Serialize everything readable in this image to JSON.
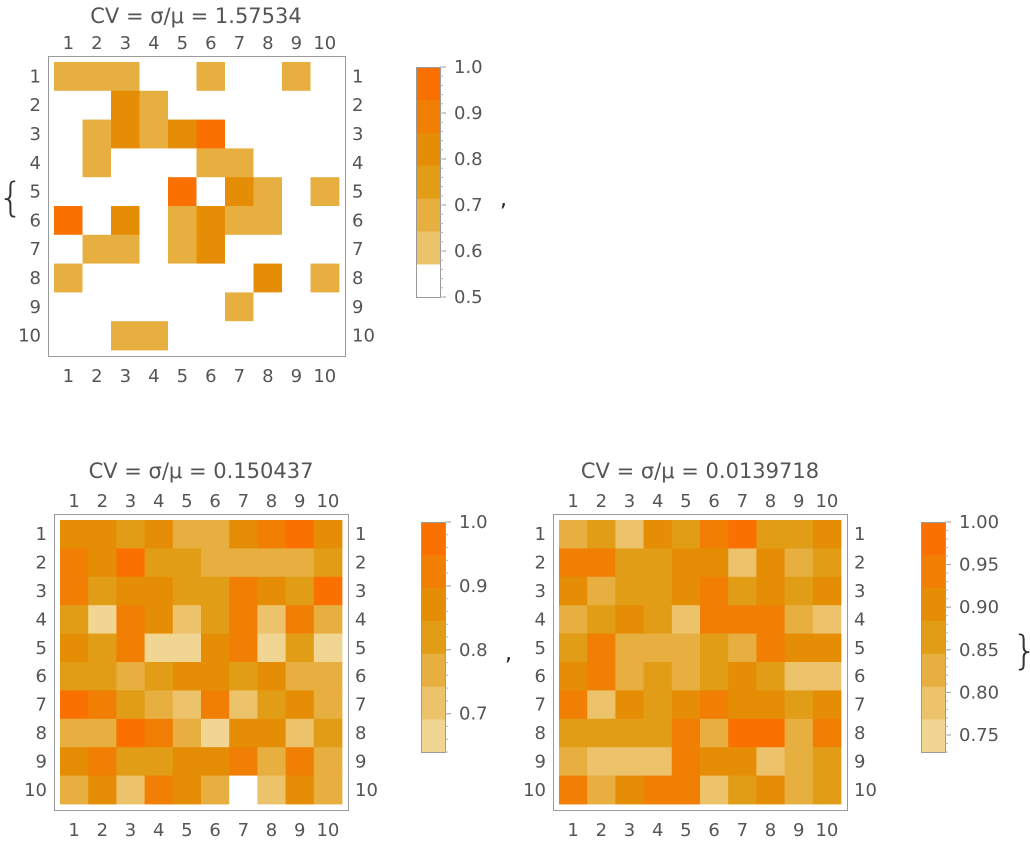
{
  "punctuation": {
    "open_brace": "{",
    "comma1": ",",
    "comma2": ",",
    "close_brace": "}"
  },
  "chart_data": [
    {
      "type": "heatmap",
      "title": "CV = σ/μ = 1.57534",
      "row_labels": [
        "1",
        "2",
        "3",
        "4",
        "5",
        "6",
        "7",
        "8",
        "9",
        "10"
      ],
      "col_labels": [
        "1",
        "2",
        "3",
        "4",
        "5",
        "6",
        "7",
        "8",
        "9",
        "10"
      ],
      "value_range": [
        0.5,
        1.0
      ],
      "colorbar_ticks": [
        "0.5",
        "0.6",
        "0.7",
        "0.8",
        "0.9",
        "1.0"
      ],
      "colorbar_steps": 7,
      "values": [
        [
          0.65,
          0.65,
          0.65,
          0,
          0,
          0.65,
          0,
          0,
          0.65,
          0
        ],
        [
          0,
          0,
          0.85,
          0.65,
          0,
          0,
          0,
          0,
          0,
          0
        ],
        [
          0,
          0.65,
          0.85,
          0.65,
          0.85,
          1.0,
          0,
          0,
          0,
          0
        ],
        [
          0,
          0.65,
          0,
          0,
          0,
          0.65,
          0.65,
          0,
          0,
          0
        ],
        [
          0,
          0,
          0,
          0,
          1.0,
          0,
          0.85,
          0.65,
          0,
          0.65
        ],
        [
          1.0,
          0,
          0.85,
          0,
          0.65,
          0.85,
          0.65,
          0.65,
          0,
          0
        ],
        [
          0,
          0.65,
          0.65,
          0,
          0.65,
          0.85,
          0,
          0,
          0,
          0
        ],
        [
          0.65,
          0,
          0,
          0,
          0,
          0,
          0,
          0.85,
          0,
          0.65
        ],
        [
          0,
          0,
          0,
          0,
          0,
          0,
          0.65,
          0,
          0,
          0
        ],
        [
          0,
          0,
          0.65,
          0.65,
          0,
          0,
          0,
          0,
          0,
          0
        ]
      ]
    },
    {
      "type": "heatmap",
      "title": "CV = σ/μ = 0.150437",
      "row_labels": [
        "1",
        "2",
        "3",
        "4",
        "5",
        "6",
        "7",
        "8",
        "9",
        "10"
      ],
      "col_labels": [
        "1",
        "2",
        "3",
        "4",
        "5",
        "6",
        "7",
        "8",
        "9",
        "10"
      ],
      "value_range": [
        0.64,
        1.0
      ],
      "colorbar_ticks": [
        "0.7",
        "0.8",
        "0.9",
        "1.0"
      ],
      "colorbar_steps": 7,
      "values": [
        [
          0.88,
          0.86,
          0.8,
          0.88,
          0.75,
          0.79,
          0.89,
          0.9,
          0.95,
          0.85
        ],
        [
          0.9,
          0.85,
          0.97,
          0.82,
          0.84,
          0.79,
          0.75,
          0.77,
          0.75,
          0.8
        ],
        [
          0.9,
          0.8,
          0.86,
          0.88,
          0.82,
          0.82,
          0.91,
          0.89,
          0.84,
          0.99
        ],
        [
          0.82,
          0.66,
          0.93,
          0.86,
          0.73,
          0.83,
          0.92,
          0.74,
          0.9,
          0.78
        ],
        [
          0.85,
          0.81,
          0.91,
          0.67,
          0.66,
          0.89,
          0.9,
          0.69,
          0.8,
          0.66
        ],
        [
          0.83,
          0.81,
          0.77,
          0.81,
          0.89,
          0.86,
          0.82,
          0.89,
          0.75,
          0.77
        ],
        [
          0.96,
          0.92,
          0.84,
          0.77,
          0.73,
          0.9,
          0.7,
          0.83,
          0.88,
          0.79
        ],
        [
          0.78,
          0.76,
          0.98,
          0.92,
          0.76,
          0.65,
          0.85,
          0.86,
          0.7,
          0.8
        ],
        [
          0.85,
          0.91,
          0.84,
          0.81,
          0.87,
          0.88,
          0.91,
          0.76,
          0.9,
          0.77
        ],
        [
          0.77,
          0.89,
          0.73,
          0.9,
          0.88,
          0.77,
          0.64,
          0.73,
          0.89,
          0.75
        ]
      ]
    },
    {
      "type": "heatmap",
      "title": "CV = σ/μ = 0.0139718",
      "row_labels": [
        "1",
        "2",
        "3",
        "4",
        "5",
        "6",
        "7",
        "8",
        "9",
        "10"
      ],
      "col_labels": [
        "1",
        "2",
        "3",
        "4",
        "5",
        "6",
        "7",
        "8",
        "9",
        "10"
      ],
      "value_range": [
        0.73,
        1.0
      ],
      "colorbar_ticks": [
        "0.75",
        "0.80",
        "0.85",
        "0.90",
        "0.95",
        "1.00"
      ],
      "colorbar_steps": 7,
      "values": [
        [
          0.82,
          0.88,
          0.78,
          0.92,
          0.88,
          0.95,
          0.97,
          0.88,
          0.88,
          0.92
        ],
        [
          0.94,
          0.94,
          0.87,
          0.86,
          0.91,
          0.89,
          0.8,
          0.91,
          0.81,
          0.87
        ],
        [
          0.92,
          0.82,
          0.88,
          0.86,
          0.91,
          0.93,
          0.85,
          0.91,
          0.86,
          0.9
        ],
        [
          0.82,
          0.87,
          0.9,
          0.86,
          0.8,
          0.93,
          0.96,
          0.96,
          0.82,
          0.79
        ],
        [
          0.88,
          0.95,
          0.84,
          0.82,
          0.82,
          0.88,
          0.83,
          0.94,
          0.92,
          0.9
        ],
        [
          0.89,
          0.95,
          0.83,
          0.88,
          0.82,
          0.86,
          0.89,
          0.88,
          0.8,
          0.79
        ],
        [
          0.95,
          0.78,
          0.9,
          0.88,
          0.92,
          0.94,
          0.89,
          0.9,
          0.88,
          0.92
        ],
        [
          0.88,
          0.88,
          0.88,
          0.85,
          0.93,
          0.83,
          0.97,
          0.97,
          0.84,
          0.95
        ],
        [
          0.81,
          0.78,
          0.8,
          0.78,
          0.94,
          0.89,
          0.89,
          0.8,
          0.81,
          0.85
        ],
        [
          0.93,
          0.84,
          0.89,
          0.94,
          0.95,
          0.78,
          0.85,
          0.9,
          0.82,
          0.88
        ]
      ]
    }
  ]
}
